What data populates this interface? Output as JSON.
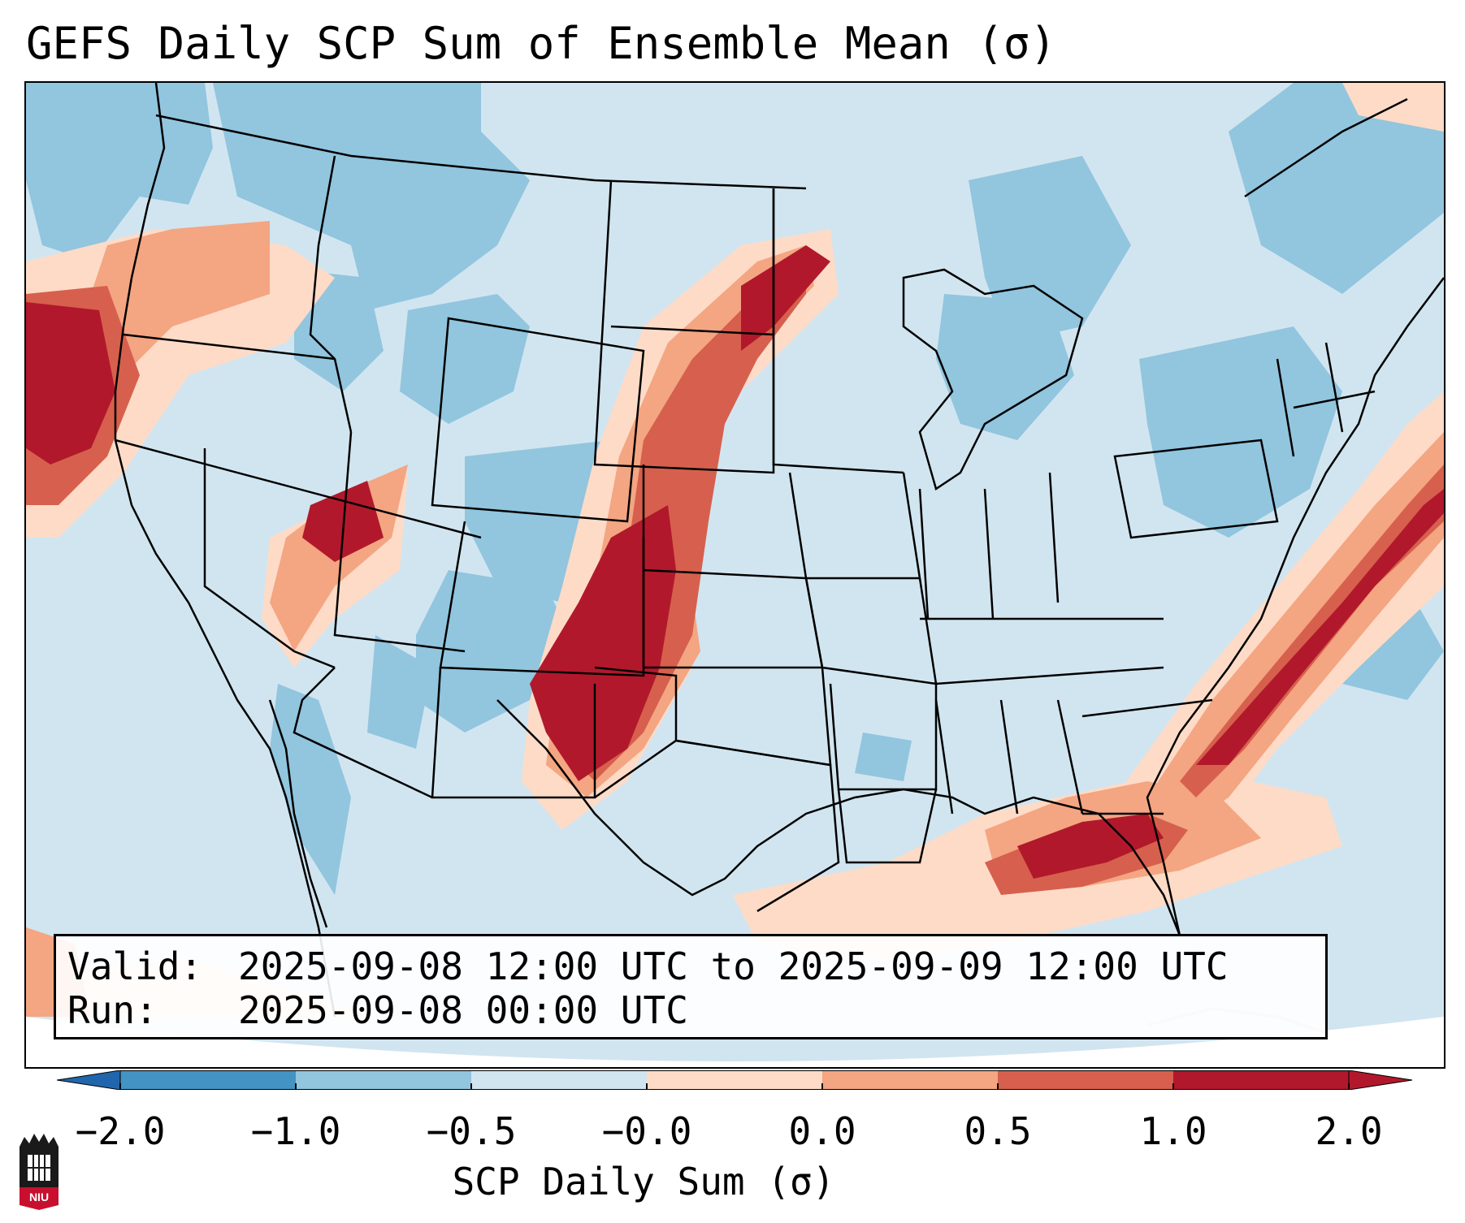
{
  "title": "GEFS Daily SCP Sum of Ensemble Mean (σ)",
  "info": {
    "valid_label": "Valid:",
    "valid_value": "2025-09-08 12:00 UTC to 2025-09-09 12:00 UTC",
    "run_label": "Run:",
    "run_value": "2025-09-08 00:00 UTC"
  },
  "colorbar": {
    "label": "SCP Daily Sum (σ)",
    "ticks": [
      "−2.0",
      "−1.0",
      "−0.5",
      "−0.0",
      "0.0",
      "0.5",
      "1.0",
      "2.0"
    ],
    "colors": [
      "#4393c3",
      "#92c5de",
      "#d1e5f0",
      "#fddbc7",
      "#f4a582",
      "#d6604d",
      "#b2182b"
    ],
    "extend_low": "#2166ac",
    "extend_high": "#b2182b"
  },
  "logo": {
    "text": "NIU"
  },
  "map_data": {
    "type": "gridded-anomaly-map",
    "region": "CONUS, southern Canada, northern Mexico",
    "field": "SCP Daily Sum standardized anomaly (σ)",
    "features": [
      {
        "name": "Pacific Northwest coast",
        "category": "high",
        "sigma_min": 1.0
      },
      {
        "name": "northern Oregon / Washington interior",
        "category": "moderate",
        "sigma_min": 0.5
      },
      {
        "name": "southern Nevada / southwest Utah",
        "category": "high",
        "sigma_min": 1.0
      },
      {
        "name": "Minnesota / eastern Dakotas",
        "category": "high",
        "sigma_min": 1.0
      },
      {
        "name": "Nebraska",
        "category": "moderate",
        "sigma_min": 0.5
      },
      {
        "name": "Kansas / Oklahoma Panhandle",
        "category": "high",
        "sigma_min": 1.0
      },
      {
        "name": "Texas Panhandle / eastern New Mexico",
        "category": "high",
        "sigma_min": 1.0
      },
      {
        "name": "Atlantic coast offshore band",
        "category": "high",
        "sigma_min": 1.0
      },
      {
        "name": "Florida / northeastern Gulf of Mexico",
        "category": "high",
        "sigma_min": 1.0
      },
      {
        "name": "Western Gulf of Mexico",
        "category": "weak",
        "sigma_min": 0.0
      },
      {
        "name": "Colorado / New Mexico",
        "category": "below-normal",
        "sigma_max": -0.5
      },
      {
        "name": "Northern Plains / Montana",
        "category": "below-normal",
        "sigma_max": -0.5
      },
      {
        "name": "Great Lakes / Northeast",
        "category": "below-normal",
        "sigma_max": -0.5
      },
      {
        "name": "Gulf of California",
        "category": "below-normal",
        "sigma_max": -0.5
      }
    ]
  }
}
